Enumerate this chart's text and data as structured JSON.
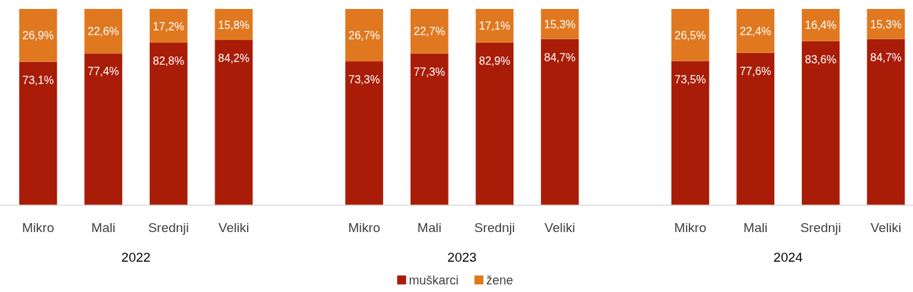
{
  "chart_data": {
    "type": "bar",
    "stacked": true,
    "categories": [
      "Mikro",
      "Mali",
      "Srednji",
      "Veliki",
      null,
      "Mikro",
      "Mali",
      "Srednji",
      "Veliki",
      null,
      "Mikro",
      "Mali",
      "Srednji",
      "Veliki"
    ],
    "ylim": [
      0,
      100
    ],
    "tick_labels": "x",
    "legend": "bottom",
    "annotations": [
      "2022",
      "2023",
      "2024"
    ],
    "series": [
      {
        "name": "muškarci",
        "color": "#a91d08",
        "values": [
          73.1,
          77.4,
          82.8,
          84.2,
          null,
          73.3,
          77.3,
          82.9,
          84.7,
          null,
          73.5,
          77.6,
          83.6,
          84.7
        ],
        "value_labels": [
          "73,1%",
          "77,4%",
          "82,8%",
          "84,2%",
          null,
          "73,3%",
          "77,3%",
          "82,9%",
          "84,7%",
          null,
          "73,5%",
          "77,6%",
          "83,6%",
          "84,7%"
        ]
      },
      {
        "name": "žene",
        "color": "#e07820",
        "values": [
          26.9,
          22.6,
          17.2,
          15.8,
          null,
          26.7,
          22.7,
          17.1,
          15.3,
          null,
          26.5,
          22.4,
          16.4,
          15.3
        ],
        "value_labels": [
          "26,9%",
          "22,6%",
          "17,2%",
          "15,8%",
          null,
          "26,7%",
          "22,7%",
          "17,1%",
          "15,3%",
          null,
          "26,5%",
          "22,4%",
          "16,4%",
          "15,3%"
        ]
      }
    ]
  }
}
